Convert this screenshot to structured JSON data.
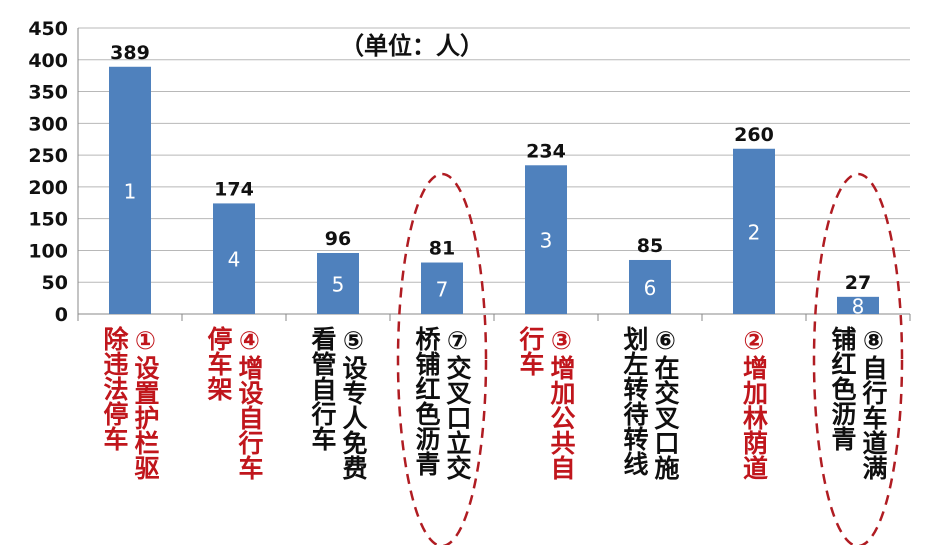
{
  "unit_label": "（单位：人）",
  "colors": {
    "bar": "#4f81bd",
    "grid": "#b8b8b8",
    "highlight_text": "#c0161c",
    "normal_text": "#0f0f0f",
    "ellipse": "#b01c22"
  },
  "chart_data": {
    "type": "bar",
    "ylim": [
      0,
      450
    ],
    "yticks": [
      "0",
      "50",
      "100",
      "150",
      "200",
      "250",
      "300",
      "350",
      "400",
      "450"
    ],
    "grid": true,
    "values": [
      389,
      174,
      96,
      81,
      234,
      85,
      260,
      27
    ],
    "ranks": [
      "1",
      "4",
      "5",
      "7",
      "3",
      "6",
      "2",
      "8"
    ],
    "categories": [
      {
        "lines": [
          "①设置护栏驱",
          "除违法停车"
        ],
        "highlight": true
      },
      {
        "lines": [
          "④增设自行车",
          "停车架"
        ],
        "highlight": true
      },
      {
        "lines": [
          "⑤设专人免费",
          "看管自行车"
        ],
        "highlight": false
      },
      {
        "lines": [
          "⑦交叉口立交",
          "桥铺红色沥青"
        ],
        "highlight": false
      },
      {
        "lines": [
          "③增加公共自",
          "行车"
        ],
        "highlight": true
      },
      {
        "lines": [
          "⑥在交叉口施",
          "划左转待转线"
        ],
        "highlight": false
      },
      {
        "lines": [
          "②增加林荫道"
        ],
        "highlight": true
      },
      {
        "lines": [
          "⑧自行车道满",
          "铺红色沥青"
        ],
        "highlight": false
      }
    ],
    "circled": [
      3,
      7
    ]
  }
}
